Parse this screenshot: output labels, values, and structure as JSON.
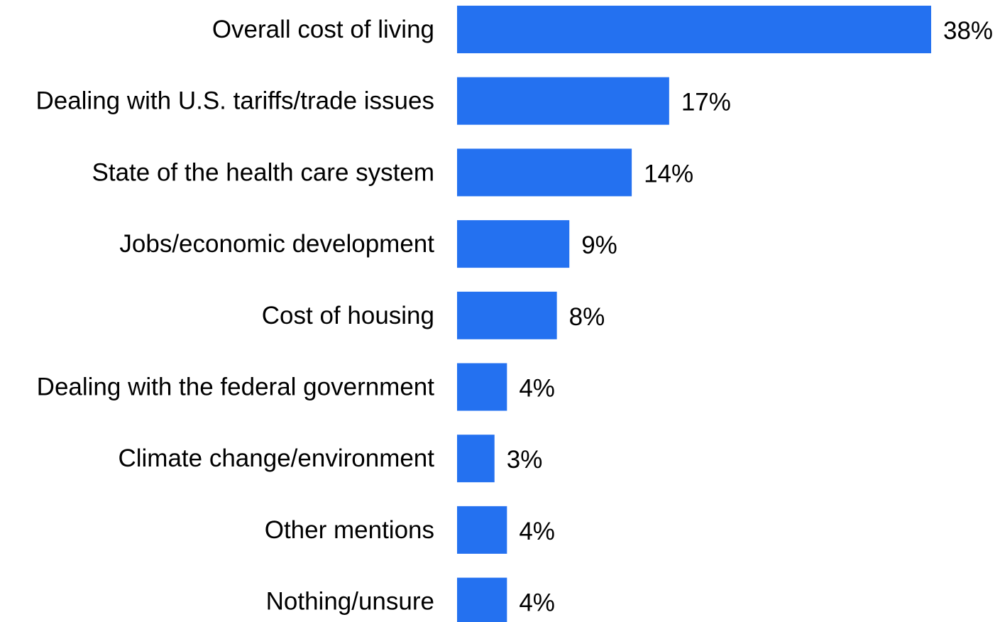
{
  "chart_data": {
    "type": "bar",
    "orientation": "horizontal",
    "categories": [
      "Overall cost of living",
      "Dealing with U.S. tariffs/trade issues",
      "State of the health care system",
      "Jobs/economic development",
      "Cost of housing",
      "Dealing with the federal government",
      "Climate change/environment",
      "Other mentions",
      "Nothing/unsure"
    ],
    "values": [
      38,
      17,
      14,
      9,
      8,
      4,
      3,
      4,
      4
    ],
    "value_labels": [
      "38%",
      "17%",
      "14%",
      "9%",
      "8%",
      "4%",
      "3%",
      "4%",
      "4%"
    ],
    "unit": "%",
    "title": "",
    "xlabel": "",
    "ylabel": "",
    "xlim": [
      0,
      38
    ],
    "grid": false,
    "legend": "none",
    "bar_color": "#2471F0"
  }
}
